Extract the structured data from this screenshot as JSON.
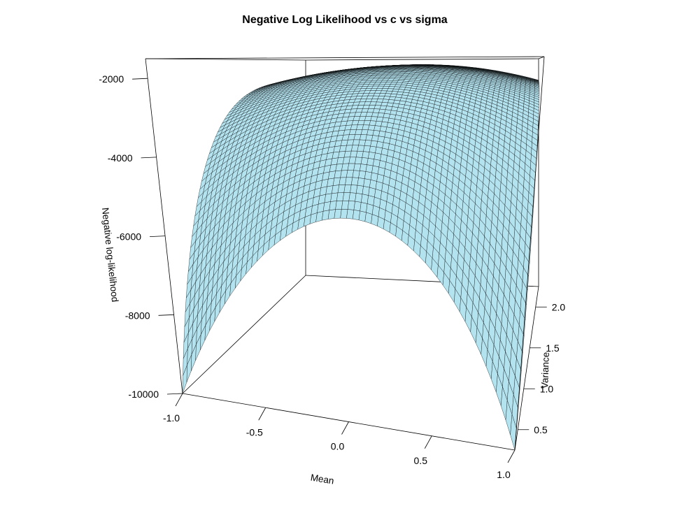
{
  "chart_data": {
    "type": "surface",
    "title": "Negative Log Likelihood vs c vs sigma",
    "xlabel": "Mean",
    "ylabel": "Variance",
    "zlabel": "Negative log-likelihood",
    "xlim": [
      -1.0,
      1.0
    ],
    "ylim": [
      0.25,
      2.25
    ],
    "zlim": [
      -10000,
      -1500
    ],
    "x_ticks": [
      -1.0,
      -0.5,
      0.0,
      0.5,
      1.0
    ],
    "x_tick_labels": [
      "-1.0",
      "-0.5",
      "0.0",
      "0.5",
      "1.0"
    ],
    "y_ticks": [
      0.5,
      1.0,
      1.5,
      2.0
    ],
    "y_tick_labels": [
      "0.5",
      "1.0",
      "1.5",
      "2.0"
    ],
    "z_ticks": [
      -10000,
      -8000,
      -6000,
      -4000,
      -2000
    ],
    "z_tick_labels": [
      "-10000",
      "-8000",
      "-6000",
      "-4000",
      "-2000"
    ],
    "surface_color": "#b4e3f0",
    "line_color": "#000000",
    "grid_n": 60,
    "sample_points": [
      {
        "mean": -1.0,
        "variance": 0.25,
        "nll": -10000
      },
      {
        "mean": 0.0,
        "variance": 0.25,
        "nll": -5250
      },
      {
        "mean": 1.0,
        "variance": 0.25,
        "nll": -10000
      },
      {
        "mean": -1.0,
        "variance": 2.25,
        "nll": -2300
      },
      {
        "mean": 0.0,
        "variance": 2.25,
        "nll": -1700
      },
      {
        "mean": 1.0,
        "variance": 2.25,
        "nll": -2300
      }
    ]
  }
}
